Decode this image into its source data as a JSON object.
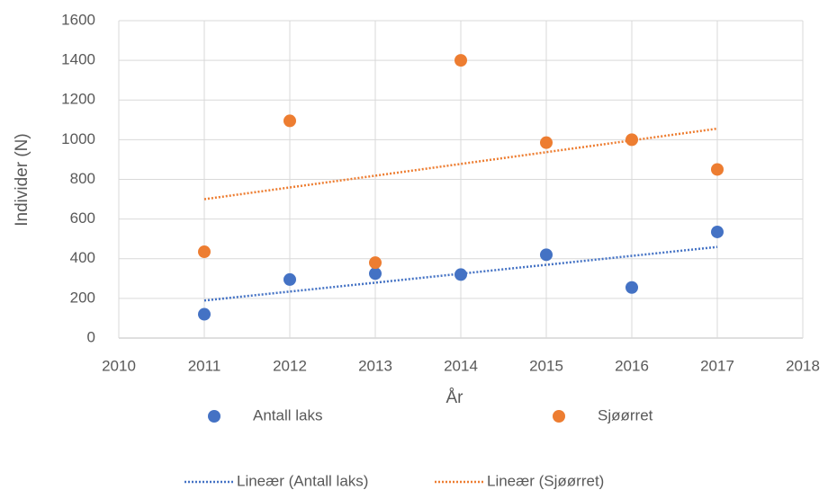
{
  "chart_data": {
    "type": "scatter",
    "x": [
      2011,
      2012,
      2013,
      2014,
      2015,
      2016,
      2017
    ],
    "series": [
      {
        "name": "Antall laks",
        "color": "#4472c4",
        "values": [
          120,
          295,
          325,
          320,
          420,
          255,
          535
        ],
        "trendline": {
          "type": "linear",
          "name": "Lineær (Antall laks)"
        }
      },
      {
        "name": "Sjøørret",
        "color": "#ed7d31",
        "values": [
          435,
          1095,
          380,
          1400,
          985,
          1000,
          850
        ],
        "trendline": {
          "type": "linear",
          "name": "Lineær (Sjøørret)"
        }
      }
    ],
    "xlabel": "År",
    "ylabel": "Individer (N)",
    "xlim": [
      2010,
      2018
    ],
    "xticks": [
      2010,
      2011,
      2012,
      2013,
      2014,
      2015,
      2016,
      2017,
      2018
    ],
    "ylim": [
      0,
      1600
    ],
    "yticks": [
      0,
      200,
      400,
      600,
      800,
      1000,
      1200,
      1400,
      1600
    ],
    "grid": true,
    "legend": "bottom"
  }
}
